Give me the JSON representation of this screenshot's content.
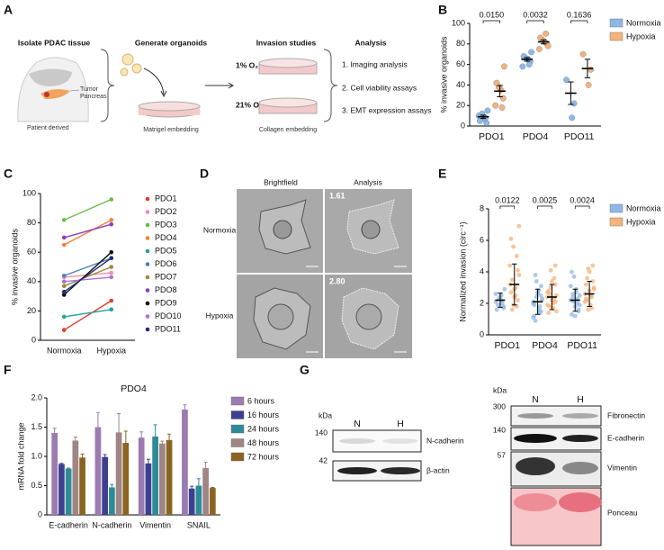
{
  "panel_labels": [
    "A",
    "B",
    "C",
    "D",
    "E",
    "F",
    "G"
  ],
  "panel_a": {
    "steps": [
      {
        "title": "Isolate PDAC tissue",
        "labels": [
          "Tumor",
          "Pancreas"
        ],
        "caption": "Patient derived"
      },
      {
        "title": "Generate organoids",
        "caption": "Matrigel embedding"
      },
      {
        "title": "Invasion studies",
        "conditions": [
          "1% O₂",
          "21% O₂"
        ],
        "caption": "Collagen embedding"
      },
      {
        "title": "Analysis",
        "items": [
          "1. Imaging analysis",
          "2. Cell viability assays",
          "3. EMT expression assays"
        ]
      }
    ]
  },
  "panel_d": {
    "columns": [
      "Brightfield",
      "Analysis"
    ],
    "rows": [
      "Normoxia",
      "Hypoxia"
    ],
    "scores": [
      "1.61",
      "2.80"
    ]
  },
  "panel_g": {
    "left": {
      "unit": "kDa",
      "lanes": [
        "N",
        "H"
      ],
      "markers": [
        "140",
        "42"
      ],
      "proteins": [
        "N-cadherin",
        "β-actin"
      ]
    },
    "right": {
      "unit": "kDa",
      "lanes": [
        "N",
        "H"
      ],
      "markers": [
        "300",
        "140",
        "57"
      ],
      "proteins": [
        "Fibronectin",
        "E-cadherin",
        "Vimentin",
        "Ponceau"
      ]
    }
  },
  "chart_data": [
    {
      "type": "strip",
      "ylabel": "% invasive organoids",
      "categories": [
        "PDO1",
        "PDO4",
        "PDO11"
      ],
      "ylim": [
        0,
        100
      ],
      "yticks": [
        0,
        20,
        40,
        60,
        80,
        100
      ],
      "legend": "outside right",
      "p_values": [
        "0.0150",
        "0.0032",
        "0.1636"
      ],
      "series": [
        {
          "name": "Normoxia",
          "color": "#8fb8e6",
          "values": [
            [
              10,
              3,
              7,
              12,
              5,
              15,
              8
            ],
            [
              58,
              63,
              65,
              66,
              68,
              72,
              60
            ],
            [
              45,
              22,
              8
            ]
          ],
          "means": [
            9,
            65,
            32
          ],
          "errors": [
            1.6,
            1.8,
            11
          ]
        },
        {
          "name": "Hypoxia",
          "color": "#f5b27a",
          "values": [
            [
              20,
              27,
              35,
              38,
              42,
              58,
              18
            ],
            [
              75,
              80,
              82,
              84,
              86,
              78,
              90
            ],
            [
              70,
              55,
              40
            ]
          ],
          "means": [
            34,
            82,
            56
          ],
          "errors": [
            5.5,
            2,
            9
          ]
        }
      ]
    },
    {
      "type": "line",
      "ylabel": "% invasive organoids",
      "categories": [
        "Normoxia",
        "Hypoxia"
      ],
      "ylim": [
        0,
        100
      ],
      "yticks": [
        0,
        20,
        40,
        60,
        80,
        100
      ],
      "legend": "outside right",
      "series": [
        {
          "name": "PDO1",
          "color": "#e8392b",
          "values": [
            7,
            27
          ]
        },
        {
          "name": "PDO2",
          "color": "#f08cb0",
          "values": [
            43,
            46
          ]
        },
        {
          "name": "PDO3",
          "color": "#6dbb45",
          "values": [
            82,
            96
          ]
        },
        {
          "name": "PDO4",
          "color": "#f5813a",
          "values": [
            65,
            82
          ]
        },
        {
          "name": "PDO5",
          "color": "#1fa39a",
          "values": [
            16,
            21
          ]
        },
        {
          "name": "PDO6",
          "color": "#4a7fc1",
          "values": [
            44,
            56
          ]
        },
        {
          "name": "PDO7",
          "color": "#9b8a3a",
          "values": [
            37,
            50
          ]
        },
        {
          "name": "PDO8",
          "color": "#8a3fb5",
          "values": [
            70,
            79
          ]
        },
        {
          "name": "PDO9",
          "color": "#111111",
          "values": [
            31,
            60
          ]
        },
        {
          "name": "PDO10",
          "color": "#b06fd0",
          "values": [
            40,
            43
          ]
        },
        {
          "name": "PDO11",
          "color": "#1f2a7a",
          "values": [
            33,
            56
          ]
        }
      ]
    },
    {
      "type": "strip",
      "ylabel": "Normalized invasion (circ⁻¹)",
      "categories": [
        "PDO1",
        "PDO4",
        "PDO11"
      ],
      "ylim": [
        0,
        8
      ],
      "yticks": [
        0,
        2,
        4,
        6,
        8
      ],
      "legend": "outside right",
      "p_values": [
        "0.0122",
        "0.0025",
        "0.0024"
      ],
      "series": [
        {
          "name": "Normoxia",
          "color": "#8fb8e6",
          "values": [
            [
              2.1,
              1.8,
              2.5,
              2.3,
              1.6,
              2.9,
              2.0,
              2.4,
              1.9,
              2.6,
              1.7,
              2.2
            ],
            [
              2.1,
              1.5,
              2.8,
              3.4,
              1.2,
              2.3,
              1.8,
              2.6,
              0.9,
              2.0,
              3.1,
              1.6,
              2.4,
              1.9,
              2.2,
              1.4,
              2.7,
              3.8,
              1.1,
              2.5
            ],
            [
              2.2,
              1.6,
              2.9,
              3.7,
              1.3,
              2.5,
              2.0,
              1.8,
              2.4,
              3.1,
              1.5,
              2.7,
              2.1,
              4.0,
              1.9,
              2.3,
              1.2,
              2.6
            ]
          ],
          "means": [
            2.2,
            2.1,
            2.2
          ],
          "errors": [
            0.45,
            0.8,
            0.7
          ]
        },
        {
          "name": "Hypoxia",
          "color": "#f5b27a",
          "values": [
            [
              3.2,
              4.1,
              2.5,
              5.6,
              6.1,
              6.9,
              1.8,
              2.9,
              3.5,
              4.4,
              2.2,
              3.0,
              1.9,
              2.7,
              3.8,
              5.0,
              2.4,
              1.6
            ],
            [
              2.4,
              3.2,
              1.7,
              4.1,
              2.8,
              1.5,
              3.6,
              2.2,
              2.6,
              1.9,
              4.4,
              2.0,
              3.0,
              1.4,
              2.5,
              2.3,
              3.4,
              1.8,
              2.7,
              2.1
            ],
            [
              2.6,
              3.4,
              1.9,
              4.2,
              2.3,
              3.0,
              1.7,
              2.8,
              3.6,
              2.1,
              4.4,
              2.5,
              1.6,
              3.2,
              2.9,
              2.4,
              4.0,
              2.2
            ]
          ],
          "means": [
            3.2,
            2.4,
            2.6
          ],
          "errors": [
            1.3,
            0.8,
            0.8
          ]
        }
      ]
    },
    {
      "type": "bar",
      "title": "PDO4",
      "ylabel": "mRNA fold change",
      "categories": [
        "E-cadherin",
        "N-cadherin",
        "Vimentin",
        "SNAIL"
      ],
      "ylim": [
        0,
        2
      ],
      "yticks": [
        0,
        0.5,
        {
          "value": 1,
          "label": "1.0"
        },
        1.5,
        {
          "value": 2,
          "label": "2.0"
        }
      ],
      "legend": "outside right",
      "series": [
        {
          "name": "6 hours",
          "color": "#9b7bb0",
          "values": [
            1.4,
            1.5,
            1.32,
            1.8
          ],
          "errors": [
            0.08,
            0.25,
            0.1,
            0.08
          ]
        },
        {
          "name": "16 hours",
          "color": "#3d3f8f",
          "values": [
            0.87,
            0.99,
            0.88,
            0.45
          ],
          "errors": [
            0.01,
            0.04,
            0.07,
            0.04
          ]
        },
        {
          "name": "24 hours",
          "color": "#2f8a96",
          "values": [
            0.79,
            0.47,
            1.34,
            0.5
          ],
          "errors": [
            0.01,
            0.05,
            0.2,
            0.12
          ]
        },
        {
          "name": "48 hours",
          "color": "#a08585",
          "values": [
            1.27,
            1.41,
            1.22,
            0.8
          ],
          "errors": [
            0.06,
            0.32,
            0.04,
            0.1
          ]
        },
        {
          "name": "72 hours",
          "color": "#8a6522",
          "values": [
            0.98,
            1.23,
            1.28,
            0.46
          ],
          "errors": [
            0.06,
            0.2,
            0.1,
            0.01
          ]
        }
      ]
    }
  ]
}
